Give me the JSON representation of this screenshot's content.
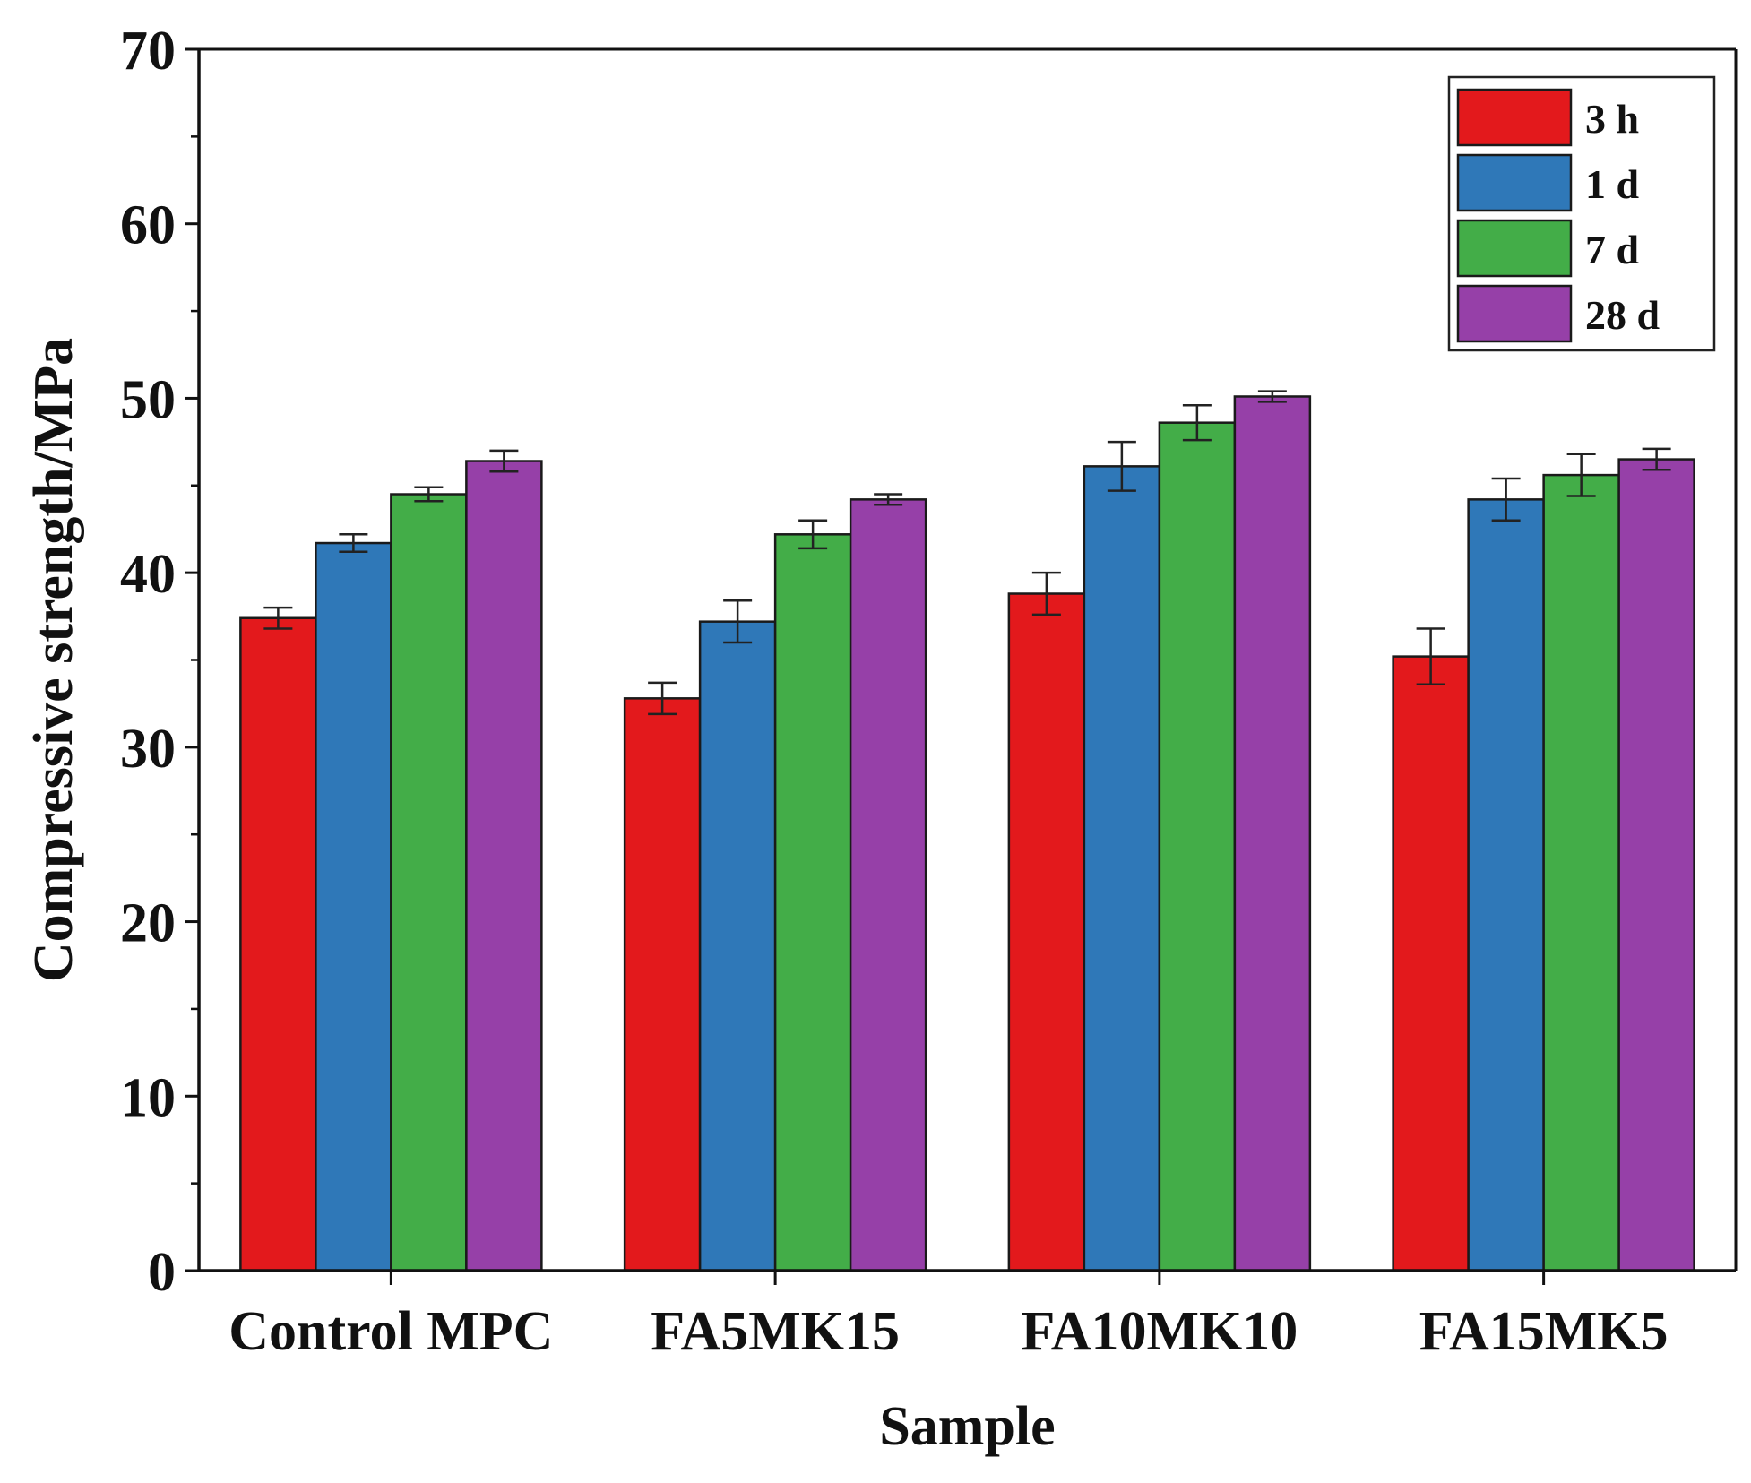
{
  "chart_data": {
    "type": "bar",
    "title": "",
    "xlabel": "Sample",
    "ylabel": "Compressive strength/MPa",
    "ylim": [
      0,
      70
    ],
    "yticks": [
      0,
      10,
      20,
      30,
      40,
      50,
      60,
      70
    ],
    "ytick_labels": [
      "0",
      "10",
      "20",
      "30",
      "40",
      "50",
      "60",
      "70"
    ],
    "grid": false,
    "legend_position": "top-right",
    "categories": [
      "Control MPC",
      "FA5MK15",
      "FA10MK10",
      "FA15MK5"
    ],
    "series": [
      {
        "name": "3 h",
        "color": "#e3191c",
        "values": [
          37.4,
          32.8,
          38.8,
          35.2
        ],
        "errors": [
          0.6,
          0.9,
          1.2,
          1.6
        ]
      },
      {
        "name": "1 d",
        "color": "#2f78b8",
        "values": [
          41.7,
          37.2,
          46.1,
          44.2
        ],
        "errors": [
          0.5,
          1.2,
          1.4,
          1.2
        ]
      },
      {
        "name": "7 d",
        "color": "#43ad48",
        "values": [
          44.5,
          42.2,
          48.6,
          45.6
        ],
        "errors": [
          0.4,
          0.8,
          1.0,
          1.2
        ]
      },
      {
        "name": "28 d",
        "color": "#9640a8",
        "values": [
          46.4,
          44.2,
          50.1,
          46.5
        ],
        "errors": [
          0.6,
          0.3,
          0.3,
          0.6
        ]
      }
    ]
  }
}
